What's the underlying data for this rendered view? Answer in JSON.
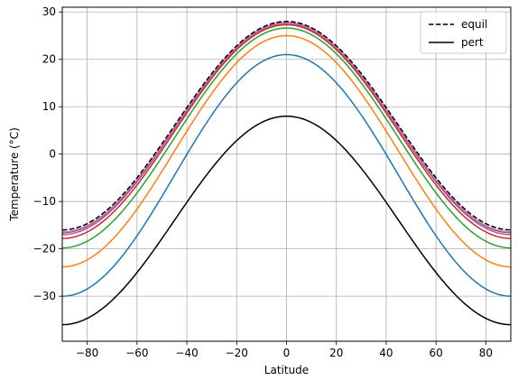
{
  "chart_data": {
    "type": "line",
    "xlabel": "Latitude",
    "ylabel": "Temperature (°C)",
    "xlim": [
      -90,
      90
    ],
    "ylim": [
      -39.5,
      31
    ],
    "xticks": [
      -80,
      -60,
      -40,
      -20,
      0,
      20,
      40,
      60,
      80
    ],
    "xtick_labels": [
      "−80",
      "−60",
      "−40",
      "−20",
      "0",
      "20",
      "40",
      "60",
      "80"
    ],
    "yticks": [
      -30,
      -20,
      -10,
      0,
      10,
      20,
      30
    ],
    "ytick_labels": [
      "−30",
      "−20",
      "−10",
      "0",
      "10",
      "20",
      "30"
    ],
    "grid": true,
    "legend": {
      "placement": "top-right",
      "entries": [
        {
          "label": "equil",
          "style": "dashed",
          "color": "#000000"
        },
        {
          "label": "pert",
          "style": "solid",
          "color": "#000000"
        }
      ]
    },
    "series": [
      {
        "name": "equil",
        "style": "dashed",
        "color": "#000000",
        "equator": 28.0,
        "pole": -16.0
      },
      {
        "name": "pert",
        "style": "solid",
        "color": "#000000",
        "equator": 8.0,
        "pole": -36.0
      },
      {
        "style": "solid",
        "color": "#1f77b4",
        "equator": 21.0,
        "pole": -30.0
      },
      {
        "style": "solid",
        "color": "#ff7f0e",
        "equator": 25.0,
        "pole": -23.8
      },
      {
        "style": "solid",
        "color": "#2ca02c",
        "equator": 26.6,
        "pole": -19.8
      },
      {
        "style": "solid",
        "color": "#d62728",
        "equator": 27.3,
        "pole": -17.8
      },
      {
        "style": "solid",
        "color": "#9467bd",
        "equator": 27.6,
        "pole": -17.0
      },
      {
        "style": "solid",
        "color": "#8c564b",
        "equator": 27.7,
        "pole": -16.6
      },
      {
        "style": "solid",
        "color": "#e377c2",
        "equator": 27.8,
        "pole": -16.4
      }
    ]
  }
}
